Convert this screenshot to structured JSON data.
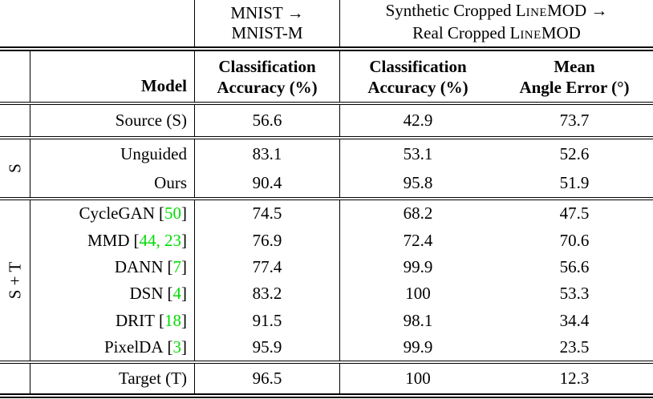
{
  "page": {
    "background": "#ffffff",
    "text_color": "#000000",
    "citation_color": "#00DD00"
  },
  "header_row1": {
    "mnist": {
      "line1": "MNIST →",
      "line2": "MNIST-M"
    },
    "linemod": {
      "line1": {
        "pre": "Synthetic Cropped L",
        "smallcaps": "INE",
        "post": "MOD →"
      },
      "line2": {
        "pre": "Real Cropped L",
        "smallcaps": "INE",
        "post": "MOD"
      }
    }
  },
  "header_row2": {
    "model": "Model",
    "cols": [
      {
        "line1": "Classification",
        "line2": "Accuracy (%)"
      },
      {
        "line1": "Classification",
        "line2": "Accuracy (%)"
      },
      {
        "line1": "Mean",
        "line2": "Angle Error (°)"
      }
    ]
  },
  "citation_brackets": {
    "open": "[",
    "close": "]"
  },
  "groups": [
    {
      "label": "",
      "rows": [
        {
          "model": "Source (S)",
          "cite": "",
          "values": [
            "56.6",
            "42.9",
            "73.7"
          ]
        }
      ]
    },
    {
      "label": "S",
      "rows": [
        {
          "model": "Unguided",
          "cite": "",
          "values": [
            "83.1",
            "53.1",
            "52.6"
          ]
        },
        {
          "model": "Ours",
          "cite": "",
          "values": [
            "90.4",
            "95.8",
            "51.9"
          ]
        }
      ]
    },
    {
      "label": "S + T",
      "rows": [
        {
          "model": "CycleGAN",
          "cite": "50",
          "values": [
            "74.5",
            "68.2",
            "47.5"
          ]
        },
        {
          "model": "MMD",
          "cite": "44, 23",
          "values": [
            "76.9",
            "72.4",
            "70.6"
          ]
        },
        {
          "model": "DANN",
          "cite": "7",
          "values": [
            "77.4",
            "99.9",
            "56.6"
          ]
        },
        {
          "model": "DSN",
          "cite": "4",
          "values": [
            "83.2",
            "100",
            "53.3"
          ]
        },
        {
          "model": "DRIT",
          "cite": "18",
          "values": [
            "91.5",
            "98.1",
            "34.4"
          ]
        },
        {
          "model": "PixelDA",
          "cite": "3",
          "values": [
            "95.9",
            "99.9",
            "23.5"
          ]
        }
      ]
    },
    {
      "label": "",
      "rows": [
        {
          "model": "Target (T)",
          "cite": "",
          "values": [
            "96.5",
            "100",
            "12.3"
          ]
        }
      ]
    }
  ]
}
